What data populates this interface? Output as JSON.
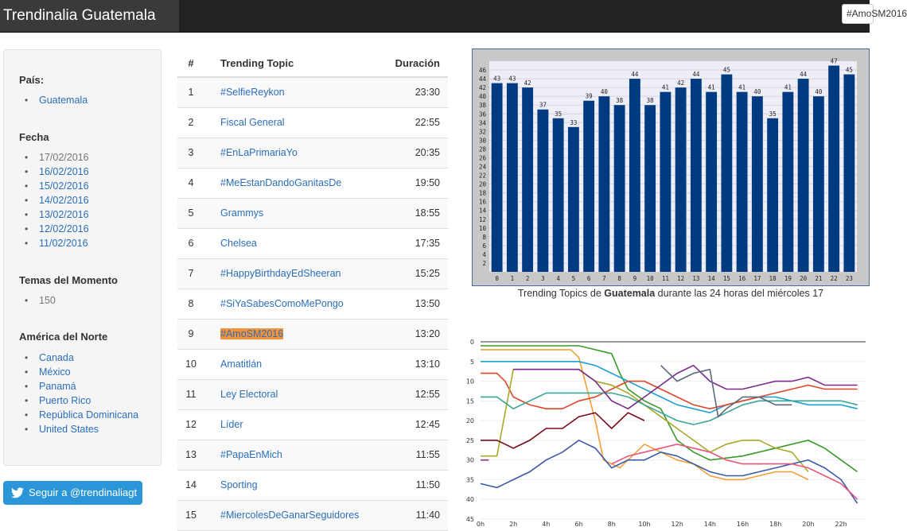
{
  "header": {
    "title": "Trendinalia Guatemala",
    "search_value": "#AmoSM2016"
  },
  "sidebar": {
    "pais": {
      "heading": "País:",
      "items": [
        "Guatemala"
      ]
    },
    "fecha": {
      "heading": "Fecha",
      "current": "17/02/2016",
      "items": [
        "16/02/2016",
        "15/02/2016",
        "14/02/2016",
        "13/02/2016",
        "12/02/2016",
        "11/02/2016"
      ]
    },
    "temas": {
      "heading": "Temas del Momento",
      "value": "150"
    },
    "america": {
      "heading": "América del Norte",
      "items": [
        "Canada",
        "México",
        "Panamá",
        "Puerto Rico",
        "República Dominicana",
        "United States"
      ]
    }
  },
  "follow_button": {
    "label": "Seguir a @trendinaliagt",
    "icon": "twitter-bird-icon"
  },
  "table": {
    "headers": {
      "num": "#",
      "topic": "Trending Topic",
      "duration": "Duración"
    },
    "rows": [
      {
        "n": "1",
        "topic": "#SelfieReykon",
        "duration": "23:30"
      },
      {
        "n": "2",
        "topic": "Fiscal General",
        "duration": "22:55"
      },
      {
        "n": "3",
        "topic": "#EnLaPrimariaYo",
        "duration": "20:35"
      },
      {
        "n": "4",
        "topic": "#MeEstanDandoGanitasDe",
        "duration": "19:50"
      },
      {
        "n": "5",
        "topic": "Grammys",
        "duration": "18:55"
      },
      {
        "n": "6",
        "topic": "Chelsea",
        "duration": "17:35"
      },
      {
        "n": "7",
        "topic": "#HappyBirthdayEdSheeran",
        "duration": "15:25"
      },
      {
        "n": "8",
        "topic": "#SiYaSabesComoMePongo",
        "duration": "13:50"
      },
      {
        "n": "9",
        "topic": "#AmoSM2016",
        "duration": "13:20",
        "highlighted": true
      },
      {
        "n": "10",
        "topic": "Amatitlán",
        "duration": "13:10"
      },
      {
        "n": "11",
        "topic": "Ley Electoral",
        "duration": "12:55"
      },
      {
        "n": "12",
        "topic": "Líder",
        "duration": "12:45"
      },
      {
        "n": "13",
        "topic": "#PapaEnMich",
        "duration": "11:55"
      },
      {
        "n": "14",
        "topic": "Sporting",
        "duration": "11:50"
      },
      {
        "n": "15",
        "topic": "#MiercolesDeGanarSeguidores",
        "duration": "11:40"
      }
    ]
  },
  "caption": {
    "before": "Trending Topics de ",
    "bold": "Guatemala",
    "after": " durante las 24 horas del miércoles 17"
  },
  "colors": {
    "bar": "#003a80",
    "link": "#2a6eba",
    "highlight": "#f7933a"
  },
  "chart_data": [
    {
      "type": "bar",
      "categories": [
        "0",
        "1",
        "2",
        "3",
        "4",
        "5",
        "6",
        "7",
        "8",
        "9",
        "10",
        "11",
        "12",
        "13",
        "14",
        "15",
        "16",
        "17",
        "18",
        "19",
        "20",
        "21",
        "22",
        "23"
      ],
      "values": [
        43,
        43,
        42,
        37,
        35,
        33,
        39,
        40,
        38,
        44,
        38,
        41,
        42,
        44,
        41,
        45,
        41,
        40,
        35,
        41,
        44,
        40,
        47,
        45
      ],
      "y_ticks": [
        2,
        4,
        6,
        8,
        10,
        12,
        14,
        16,
        18,
        20,
        22,
        24,
        26,
        28,
        30,
        32,
        34,
        36,
        38,
        40,
        42,
        44,
        46
      ],
      "ylim": [
        0,
        48
      ],
      "data_labels": true
    },
    {
      "type": "line",
      "y_inverted": true,
      "ylim": [
        0,
        45
      ],
      "y_ticks": [
        0,
        5,
        10,
        15,
        20,
        25,
        30,
        35,
        40,
        45
      ],
      "x_ticks": [
        "0h",
        "2h",
        "4h",
        "6h",
        "8h",
        "10h",
        "12h",
        "14h",
        "16h",
        "18h",
        "20h",
        "22h"
      ],
      "xlim": [
        0,
        23.5
      ],
      "series": [
        {
          "color": "#3a9a2a",
          "points": [
            [
              0,
              1
            ],
            [
              6,
              1
            ],
            [
              7,
              2
            ],
            [
              8,
              3
            ],
            [
              8.5,
              8
            ],
            [
              9,
              12
            ],
            [
              10,
              15
            ],
            [
              11,
              17
            ],
            [
              12,
              25
            ],
            [
              13,
              28
            ],
            [
              14,
              30
            ],
            [
              16,
              29
            ],
            [
              18,
              27
            ],
            [
              20,
              25
            ],
            [
              21,
              27
            ],
            [
              22,
              30
            ],
            [
              23,
              33
            ]
          ]
        },
        {
          "color": "#f3a03a",
          "points": [
            [
              0,
              2
            ],
            [
              5.5,
              2
            ],
            [
              6,
              4
            ],
            [
              7,
              20
            ],
            [
              7.5,
              30
            ],
            [
              8.5,
              32
            ],
            [
              9,
              30
            ],
            [
              10,
              26
            ],
            [
              11,
              28
            ],
            [
              12,
              30
            ],
            [
              13,
              31
            ],
            [
              14,
              34
            ],
            [
              15,
              35
            ],
            [
              16,
              35
            ],
            [
              17,
              34
            ],
            [
              18,
              33
            ],
            [
              19,
              33
            ],
            [
              20,
              35
            ]
          ]
        },
        {
          "color": "#1da1d2",
          "points": [
            [
              0,
              5
            ],
            [
              6,
              5
            ],
            [
              7,
              6
            ],
            [
              8,
              8
            ],
            [
              9,
              10
            ],
            [
              10,
              12
            ],
            [
              11,
              14
            ],
            [
              12,
              16
            ],
            [
              13,
              17
            ],
            [
              14,
              18
            ],
            [
              15,
              16
            ],
            [
              16,
              15
            ],
            [
              17,
              14
            ],
            [
              18,
              14
            ],
            [
              19,
              15
            ],
            [
              20,
              16
            ],
            [
              21,
              16
            ],
            [
              22,
              16
            ],
            [
              23,
              17
            ]
          ]
        },
        {
          "color": "#e0462a",
          "points": [
            [
              0,
              8
            ],
            [
              1,
              8
            ],
            [
              1.5,
              10
            ],
            [
              2,
              14
            ],
            [
              3,
              16
            ],
            [
              4,
              17
            ],
            [
              5,
              17
            ],
            [
              6,
              15
            ],
            [
              7,
              14
            ],
            [
              8,
              12
            ],
            [
              9,
              10
            ],
            [
              10,
              10
            ],
            [
              11,
              12
            ],
            [
              12,
              14
            ],
            [
              13,
              16
            ],
            [
              14,
              17
            ],
            [
              15,
              16
            ],
            [
              16,
              15
            ],
            [
              17,
              14
            ],
            [
              18,
              13
            ],
            [
              19,
              12
            ],
            [
              20,
              11
            ],
            [
              21,
              12
            ],
            [
              22,
              12
            ],
            [
              23,
              12
            ]
          ]
        },
        {
          "color": "#a8a82a",
          "points": [
            [
              0,
              29
            ],
            [
              1,
              29
            ],
            [
              2,
              7
            ],
            [
              4,
              7
            ],
            [
              6,
              7
            ],
            [
              7,
              10
            ],
            [
              8,
              11
            ],
            [
              9,
              13
            ],
            [
              10,
              16
            ],
            [
              11,
              19
            ],
            [
              12,
              22
            ],
            [
              13,
              25
            ],
            [
              14,
              28
            ],
            [
              15,
              26
            ],
            [
              16,
              25
            ],
            [
              17,
              25
            ],
            [
              18,
              27
            ],
            [
              19,
              28
            ],
            [
              20,
              33
            ]
          ]
        },
        {
          "color": "#3aa597",
          "points": [
            [
              0,
              14
            ],
            [
              1,
              14
            ],
            [
              2,
              17
            ],
            [
              3,
              15
            ],
            [
              4,
              13
            ],
            [
              5,
              13
            ],
            [
              6,
              13
            ],
            [
              7,
              13
            ],
            [
              8,
              13
            ],
            [
              9,
              14
            ],
            [
              10,
              16
            ],
            [
              11,
              18
            ],
            [
              12,
              20
            ],
            [
              13,
              21
            ],
            [
              14,
              20
            ],
            [
              15,
              18
            ],
            [
              16,
              16
            ],
            [
              17,
              15
            ],
            [
              18,
              15
            ],
            [
              19,
              15
            ],
            [
              20,
              15
            ],
            [
              21,
              15
            ],
            [
              22,
              15
            ],
            [
              23,
              16
            ]
          ]
        },
        {
          "color": "#7a0a1a",
          "points": [
            [
              0,
              25
            ],
            [
              1,
              25
            ],
            [
              2,
              27
            ],
            [
              3,
              25
            ],
            [
              4,
              22
            ],
            [
              5,
              22
            ],
            [
              6,
              19
            ],
            [
              7,
              18
            ],
            [
              7.5,
              20
            ],
            [
              8,
              22
            ],
            [
              9,
              18
            ],
            [
              10,
              20
            ]
          ]
        },
        {
          "color": "#3a5aa8",
          "points": [
            [
              0,
              36
            ],
            [
              1,
              37
            ],
            [
              2,
              35
            ],
            [
              3,
              33
            ],
            [
              4,
              30
            ],
            [
              5,
              28
            ],
            [
              6,
              25
            ],
            [
              7,
              27
            ],
            [
              8,
              32
            ],
            [
              9,
              30
            ],
            [
              10,
              30
            ],
            [
              11,
              28
            ],
            [
              12,
              29
            ],
            [
              13,
              31
            ],
            [
              14,
              33
            ],
            [
              15,
              34
            ],
            [
              16,
              34
            ],
            [
              17,
              33
            ],
            [
              18,
              32
            ],
            [
              19,
              31
            ],
            [
              20,
              30
            ],
            [
              21,
              32
            ],
            [
              22,
              35
            ],
            [
              23,
              41
            ]
          ]
        },
        {
          "color": "#7a2a8a",
          "points": [
            [
              2,
              7
            ],
            [
              3,
              7
            ],
            [
              4,
              7
            ],
            [
              5,
              7
            ],
            [
              6,
              7
            ],
            [
              7,
              10
            ],
            [
              8,
              15
            ],
            [
              9,
              17
            ],
            [
              10,
              14
            ],
            [
              11,
              11
            ],
            [
              12,
              8
            ],
            [
              13,
              6
            ],
            [
              14,
              10
            ],
            [
              15,
              12
            ],
            [
              16,
              12
            ],
            [
              17,
              11
            ],
            [
              18,
              10
            ],
            [
              19,
              10
            ],
            [
              20,
              9
            ],
            [
              21,
              11
            ],
            [
              22,
              11
            ],
            [
              23,
              11
            ]
          ]
        },
        {
          "color": "#e8567a",
          "points": [
            [
              8,
              31
            ],
            [
              9,
              29
            ],
            [
              10,
              28
            ],
            [
              11,
              27
            ],
            [
              12,
              26
            ],
            [
              13,
              27
            ],
            [
              14,
              28
            ],
            [
              15,
              30
            ],
            [
              16,
              31
            ],
            [
              17,
              31
            ],
            [
              18,
              31
            ],
            [
              19,
              31
            ],
            [
              20,
              32
            ],
            [
              21,
              34
            ],
            [
              22,
              36
            ],
            [
              23,
              40
            ]
          ]
        },
        {
          "color": "#8a2a8a",
          "points": [
            [
              0,
              30
            ],
            [
              0.5,
              30
            ]
          ]
        },
        {
          "color": "#5a6a7a",
          "points": [
            [
              11,
              6
            ],
            [
              12,
              10
            ],
            [
              13,
              8
            ],
            [
              14,
              7
            ],
            [
              14.5,
              19
            ],
            [
              15,
              17
            ],
            [
              16,
              14
            ],
            [
              17,
              14
            ],
            [
              18,
              16
            ],
            [
              19,
              16
            ]
          ]
        }
      ]
    }
  ]
}
